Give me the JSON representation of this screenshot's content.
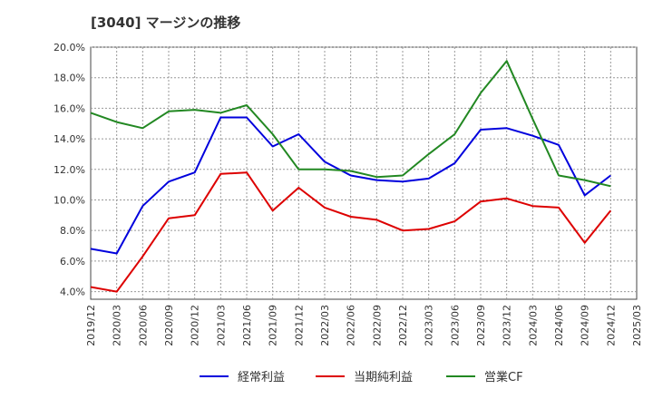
{
  "chart_data": {
    "type": "line",
    "title": "[3040]  マージンの推移",
    "xlabel": "",
    "ylabel": "",
    "ylim": [
      3.5,
      20.0
    ],
    "grid": true,
    "legend_placement": "bottom",
    "x_ticks": [
      "2019/12",
      "2020/03",
      "2020/06",
      "2020/09",
      "2020/12",
      "2021/03",
      "2021/06",
      "2021/09",
      "2021/12",
      "2022/03",
      "2022/06",
      "2022/09",
      "2022/12",
      "2023/03",
      "2023/06",
      "2023/09",
      "2023/12",
      "2024/03",
      "2024/06",
      "2024/09",
      "2024/12",
      "2025/03"
    ],
    "y_ticks": [
      "4.0%",
      "6.0%",
      "8.0%",
      "10.0%",
      "12.0%",
      "14.0%",
      "16.0%",
      "18.0%",
      "20.0%"
    ],
    "y_tick_values": [
      4,
      6,
      8,
      10,
      12,
      14,
      16,
      18,
      20
    ],
    "categories": [
      "2019/12",
      "2020/03",
      "2020/06",
      "2020/09",
      "2020/12",
      "2021/03",
      "2021/06",
      "2021/09",
      "2021/12",
      "2022/03",
      "2022/06",
      "2022/09",
      "2022/12",
      "2023/03",
      "2023/06",
      "2023/09",
      "2023/12",
      "2024/03",
      "2024/06",
      "2024/09",
      "2024/12"
    ],
    "series": [
      {
        "name": "経常利益",
        "color": "#0000dd",
        "values": [
          6.8,
          6.5,
          9.6,
          11.2,
          11.8,
          15.4,
          15.4,
          13.5,
          14.3,
          12.5,
          11.6,
          11.3,
          11.2,
          11.4,
          12.4,
          14.6,
          14.7,
          14.2,
          13.6,
          10.3,
          11.6
        ]
      },
      {
        "name": "当期純利益",
        "color": "#dd0000",
        "values": [
          4.3,
          4.0,
          6.3,
          8.8,
          9.0,
          11.7,
          11.8,
          9.3,
          10.8,
          9.5,
          8.9,
          8.7,
          8.0,
          8.1,
          8.6,
          9.9,
          10.1,
          9.6,
          9.5,
          7.2,
          9.3
        ]
      },
      {
        "name": "営業CF",
        "color": "#228822",
        "values": [
          15.7,
          15.1,
          14.7,
          15.8,
          15.9,
          15.7,
          16.2,
          14.3,
          12.0,
          12.0,
          11.9,
          11.5,
          11.6,
          13.0,
          14.3,
          17.0,
          19.1,
          15.3,
          11.6,
          11.3,
          10.9
        ]
      }
    ]
  }
}
